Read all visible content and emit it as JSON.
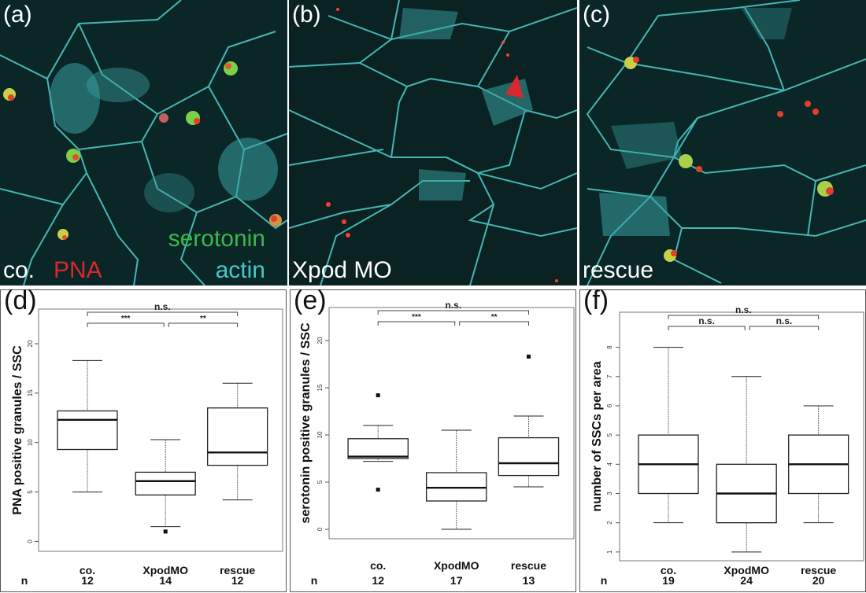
{
  "figure": {
    "micrographs": [
      {
        "id": "a",
        "label": "(a)",
        "condition": "co.",
        "stain_labels": {
          "pna": "PNA",
          "serotonin": "serotonin",
          "actin": "actin"
        }
      },
      {
        "id": "b",
        "label": "(b)",
        "condition": "Xpod MO"
      },
      {
        "id": "c",
        "label": "(c)",
        "condition": "rescue"
      }
    ],
    "colors": {
      "pna": "#d8282e",
      "serotonin": "#38b84a",
      "actin": "#46c8c8",
      "arrowhead": "#d8282e"
    }
  },
  "chart_data": [
    {
      "id": "d",
      "panel_label": "(d)",
      "type": "box",
      "ylabel": "PNA positive granules / SSC",
      "xlabel": "",
      "ylim": [
        -1,
        23.5
      ],
      "yticks": [
        0,
        5,
        10,
        15,
        20
      ],
      "categories": [
        "co.",
        "XpodMO",
        "rescue"
      ],
      "n_label": "n",
      "n": [
        "12",
        "14",
        "12"
      ],
      "boxes": [
        {
          "whisker_low": 5.0,
          "q1": 9.3,
          "median": 12.3,
          "q3": 13.2,
          "whisker_high": 18.3,
          "outliers": []
        },
        {
          "whisker_low": 1.5,
          "q1": 4.7,
          "median": 6.1,
          "q3": 7.0,
          "whisker_high": 10.3,
          "outliers": [
            1.0
          ]
        },
        {
          "whisker_low": 4.2,
          "q1": 7.7,
          "median": 9.0,
          "q3": 13.5,
          "whisker_high": 16.0,
          "outliers": []
        }
      ],
      "significance": [
        {
          "from": 0,
          "to": 2,
          "label": "n.s.",
          "level": 2
        },
        {
          "from": 0,
          "to": 1,
          "label": "***",
          "level": 1
        },
        {
          "from": 1,
          "to": 2,
          "label": "**",
          "level": 1
        }
      ]
    },
    {
      "id": "e",
      "panel_label": "(e)",
      "type": "box",
      "ylabel": "serotonin positive granules / SSC",
      "xlabel": "",
      "ylim": [
        -1,
        23.5
      ],
      "yticks": [
        0,
        5,
        10,
        15,
        20
      ],
      "categories": [
        "co.",
        "XpodMO",
        "rescue"
      ],
      "n_label": "n",
      "n": [
        "12",
        "17",
        "13"
      ],
      "boxes": [
        {
          "whisker_low": 7.2,
          "q1": 7.5,
          "median": 7.7,
          "q3": 9.6,
          "whisker_high": 11.0,
          "outliers": [
            14.2,
            4.2
          ]
        },
        {
          "whisker_low": 0.0,
          "q1": 3.0,
          "median": 4.4,
          "q3": 6.0,
          "whisker_high": 10.5,
          "outliers": []
        },
        {
          "whisker_low": 4.5,
          "q1": 5.7,
          "median": 7.0,
          "q3": 9.7,
          "whisker_high": 12.0,
          "outliers": [
            18.3
          ]
        }
      ],
      "significance": [
        {
          "from": 0,
          "to": 2,
          "label": "n.s.",
          "level": 2
        },
        {
          "from": 0,
          "to": 1,
          "label": "***",
          "level": 1
        },
        {
          "from": 1,
          "to": 2,
          "label": "**",
          "level": 1
        }
      ]
    },
    {
      "id": "f",
      "panel_label": "(f)",
      "type": "box",
      "ylabel": "number of SSCs per area",
      "xlabel": "",
      "ylim": [
        0.7,
        9.2
      ],
      "yticks": [
        1,
        2,
        3,
        4,
        5,
        6,
        7,
        8
      ],
      "categories": [
        "co.",
        "XpodMO",
        "rescue"
      ],
      "n_label": "n",
      "n": [
        "19",
        "24",
        "20"
      ],
      "boxes": [
        {
          "whisker_low": 2,
          "q1": 3,
          "median": 4,
          "q3": 5,
          "whisker_high": 8,
          "outliers": []
        },
        {
          "whisker_low": 1,
          "q1": 2,
          "median": 3,
          "q3": 4,
          "whisker_high": 7,
          "outliers": []
        },
        {
          "whisker_low": 2,
          "q1": 3,
          "median": 4,
          "q3": 5,
          "whisker_high": 6,
          "outliers": []
        }
      ],
      "significance": [
        {
          "from": 0,
          "to": 2,
          "label": "n.s.",
          "level": 2
        },
        {
          "from": 0,
          "to": 1,
          "label": "n.s.",
          "level": 1
        },
        {
          "from": 1,
          "to": 2,
          "label": "n.s.",
          "level": 1
        }
      ]
    }
  ]
}
